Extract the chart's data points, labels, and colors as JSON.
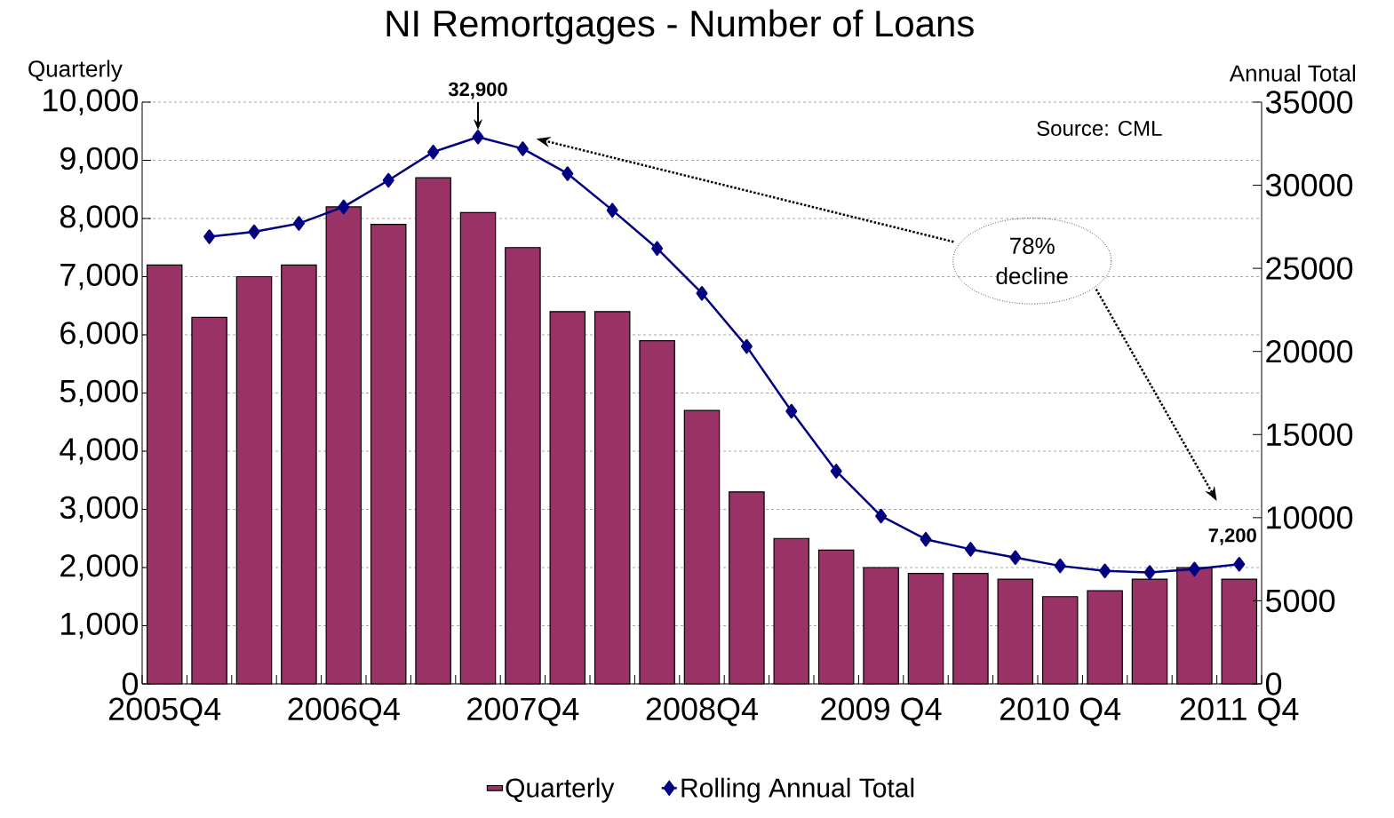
{
  "chart_data": {
    "type": "bar",
    "title": "NI Remortgages - Number of Loans",
    "ylabel": "Quarterly",
    "y2label": "Annual Total",
    "categories": [
      "2005Q4",
      null,
      null,
      null,
      "2006Q4",
      null,
      null,
      null,
      "2007Q4",
      null,
      null,
      null,
      "2008Q4",
      null,
      null,
      null,
      "2009 Q4",
      null,
      null,
      null,
      "2010 Q4",
      null,
      null,
      null,
      "2011 Q4"
    ],
    "series": [
      {
        "name": "Quarterly",
        "color": "#993366",
        "values": [
          7200,
          6300,
          7000,
          7200,
          8200,
          7900,
          8700,
          8100,
          7500,
          6400,
          6400,
          5900,
          4700,
          3300,
          2500,
          2300,
          2000,
          1900,
          1900,
          1800,
          1500,
          1600,
          1800,
          2000,
          1800
        ]
      },
      {
        "name": "Rolling Annual Total",
        "type": "line",
        "axis": "y2",
        "color": "#000080",
        "marker": "diamond",
        "line_style": "solid",
        "values": [
          null,
          26900,
          27200,
          27700,
          28700,
          30300,
          32000,
          32900,
          32200,
          30700,
          28500,
          26200,
          23500,
          20300,
          16400,
          12800,
          10100,
          8700,
          8100,
          7600,
          7100,
          6800,
          6700,
          6900,
          7200
        ]
      }
    ],
    "ylim": [
      0,
      10000
    ],
    "yticks": [
      {
        "value": 0,
        "label": "0"
      },
      {
        "value": 1000,
        "label": "1,000"
      },
      {
        "value": 2000,
        "label": "2,000"
      },
      {
        "value": 3000,
        "label": "3,000"
      },
      {
        "value": 4000,
        "label": "4,000"
      },
      {
        "value": 5000,
        "label": "5,000"
      },
      {
        "value": 6000,
        "label": "6,000"
      },
      {
        "value": 7000,
        "label": "7,000"
      },
      {
        "value": 8000,
        "label": "8,000"
      },
      {
        "value": 9000,
        "label": "9,000"
      },
      {
        "value": 10000,
        "label": "10,000"
      }
    ],
    "y2lim": [
      0,
      35000
    ],
    "y2ticks": [
      0,
      5000,
      10000,
      15000,
      20000,
      25000,
      30000,
      35000
    ],
    "grid": "y",
    "legend": "bottom",
    "annotations": [
      "32,900",
      "7,200",
      "78% decline",
      "Source: CML"
    ]
  }
}
